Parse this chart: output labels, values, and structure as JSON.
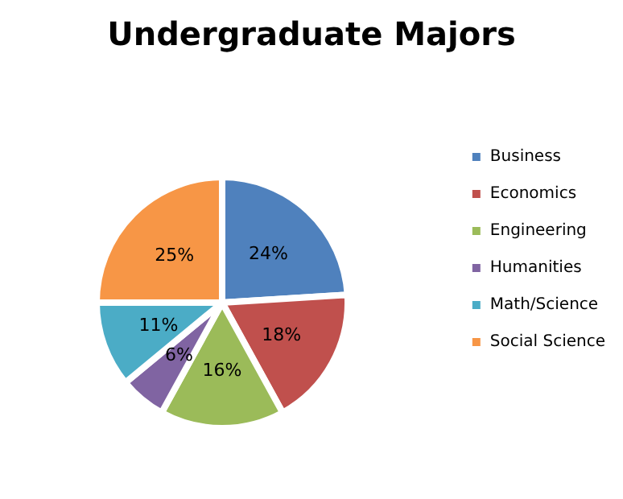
{
  "chart_data": {
    "type": "pie",
    "title": "Undergraduate Majors",
    "categories": [
      "Business",
      "Economics",
      "Engineering",
      "Humanities",
      "Math/Science",
      "Social Science"
    ],
    "values": [
      24,
      18,
      16,
      6,
      11,
      25
    ],
    "value_labels": [
      "24%",
      "18%",
      "16%",
      "6%",
      "11%",
      "25%"
    ],
    "colors": [
      "#4f81bd",
      "#c0504d",
      "#9bbb59",
      "#8064a2",
      "#4bacc6",
      "#f79646"
    ],
    "legend": "right"
  }
}
